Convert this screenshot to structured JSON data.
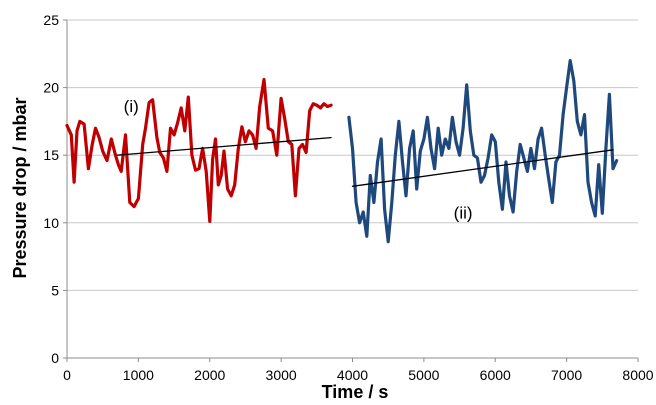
{
  "chart_data": {
    "type": "line",
    "title": "",
    "xlabel": "Time / s",
    "ylabel": "Pressure drop / mbar",
    "xlim": [
      0,
      8000
    ],
    "ylim": [
      0,
      25
    ],
    "xticks": [
      0,
      1000,
      2000,
      3000,
      4000,
      5000,
      6000,
      7000,
      8000
    ],
    "yticks": [
      0,
      5,
      10,
      15,
      20,
      25
    ],
    "grid": "horizontal",
    "legend": "none",
    "annotations": [
      {
        "text": "(i)",
        "x": 900,
        "y": 18.2
      },
      {
        "text": "(ii)",
        "x": 5550,
        "y": 10.3
      }
    ],
    "series": [
      {
        "color": "#c00000",
        "x": [
          0,
          60,
          100,
          140,
          180,
          240,
          300,
          350,
          400,
          450,
          500,
          560,
          620,
          680,
          720,
          760,
          820,
          880,
          940,
          1000,
          1060,
          1100,
          1150,
          1200,
          1260,
          1300,
          1350,
          1400,
          1450,
          1500,
          1550,
          1600,
          1650,
          1700,
          1750,
          1800,
          1850,
          1900,
          1950,
          2000,
          2040,
          2080,
          2120,
          2160,
          2200,
          2250,
          2300,
          2350,
          2400,
          2450,
          2500,
          2550,
          2600,
          2650,
          2700,
          2760,
          2820,
          2880,
          2940,
          3000,
          3050,
          3100,
          3150,
          3200,
          3250,
          3300,
          3350,
          3400,
          3450,
          3500,
          3550,
          3600,
          3650,
          3700
        ],
        "values": [
          17.2,
          16.5,
          13.0,
          16.8,
          17.5,
          17.3,
          14.0,
          15.7,
          17.0,
          16.3,
          15.3,
          14.6,
          16.2,
          15.0,
          14.3,
          13.8,
          16.5,
          11.5,
          11.2,
          11.8,
          15.8,
          17.0,
          18.9,
          19.1,
          16.3,
          15.2,
          14.8,
          13.8,
          17.0,
          16.5,
          17.4,
          18.5,
          16.8,
          19.3,
          15.0,
          13.9,
          14.0,
          15.5,
          13.8,
          10.1,
          14.7,
          16.2,
          12.8,
          13.5,
          15.3,
          12.5,
          12.0,
          12.8,
          15.5,
          17.1,
          16.0,
          16.8,
          16.5,
          15.5,
          18.6,
          20.6,
          17.0,
          16.8,
          15.0,
          19.2,
          17.7,
          16.0,
          15.8,
          12.0,
          15.5,
          15.8,
          15.2,
          18.3,
          18.8,
          18.7,
          18.5,
          18.8,
          18.6,
          18.7
        ]
      },
      {
        "color": "#1f497d",
        "x": [
          3950,
          4000,
          4050,
          4100,
          4150,
          4200,
          4250,
          4300,
          4350,
          4400,
          4450,
          4500,
          4550,
          4600,
          4650,
          4700,
          4750,
          4800,
          4850,
          4900,
          4950,
          5000,
          5050,
          5100,
          5150,
          5200,
          5250,
          5300,
          5350,
          5400,
          5450,
          5500,
          5550,
          5600,
          5650,
          5700,
          5750,
          5800,
          5850,
          5900,
          5950,
          6000,
          6050,
          6100,
          6150,
          6200,
          6250,
          6300,
          6350,
          6400,
          6450,
          6500,
          6550,
          6600,
          6650,
          6700,
          6750,
          6800,
          6850,
          6900,
          6950,
          7000,
          7050,
          7100,
          7150,
          7200,
          7250,
          7300,
          7350,
          7400,
          7450,
          7500,
          7550,
          7600,
          7650,
          7700
        ],
        "values": [
          17.8,
          15.5,
          11.5,
          10.0,
          10.8,
          9.0,
          13.5,
          11.5,
          14.5,
          16.2,
          11.0,
          8.6,
          11.5,
          15.0,
          17.5,
          14.5,
          12.0,
          15.5,
          16.8,
          12.5,
          15.3,
          16.2,
          17.8,
          15.5,
          14.0,
          17.0,
          15.0,
          16.2,
          15.5,
          17.8,
          16.0,
          15.0,
          17.0,
          20.2,
          16.8,
          15.0,
          14.8,
          13.0,
          13.5,
          14.8,
          16.5,
          16.0,
          13.0,
          11.0,
          14.5,
          12.0,
          10.8,
          13.8,
          15.8,
          14.8,
          13.8,
          15.5,
          14.0,
          16.2,
          17.0,
          15.0,
          13.2,
          11.5,
          14.5,
          15.0,
          18.0,
          20.0,
          22.0,
          20.5,
          17.5,
          16.5,
          18.0,
          13.0,
          11.5,
          10.5,
          14.3,
          10.7,
          15.5,
          19.5,
          14.0,
          14.6
        ]
      },
      {
        "color": "#000000",
        "x": [
          700,
          3700
        ],
        "values": [
          15.0,
          16.3
        ]
      },
      {
        "color": "#000000",
        "x": [
          4000,
          7650
        ],
        "values": [
          12.7,
          15.4
        ]
      }
    ]
  }
}
